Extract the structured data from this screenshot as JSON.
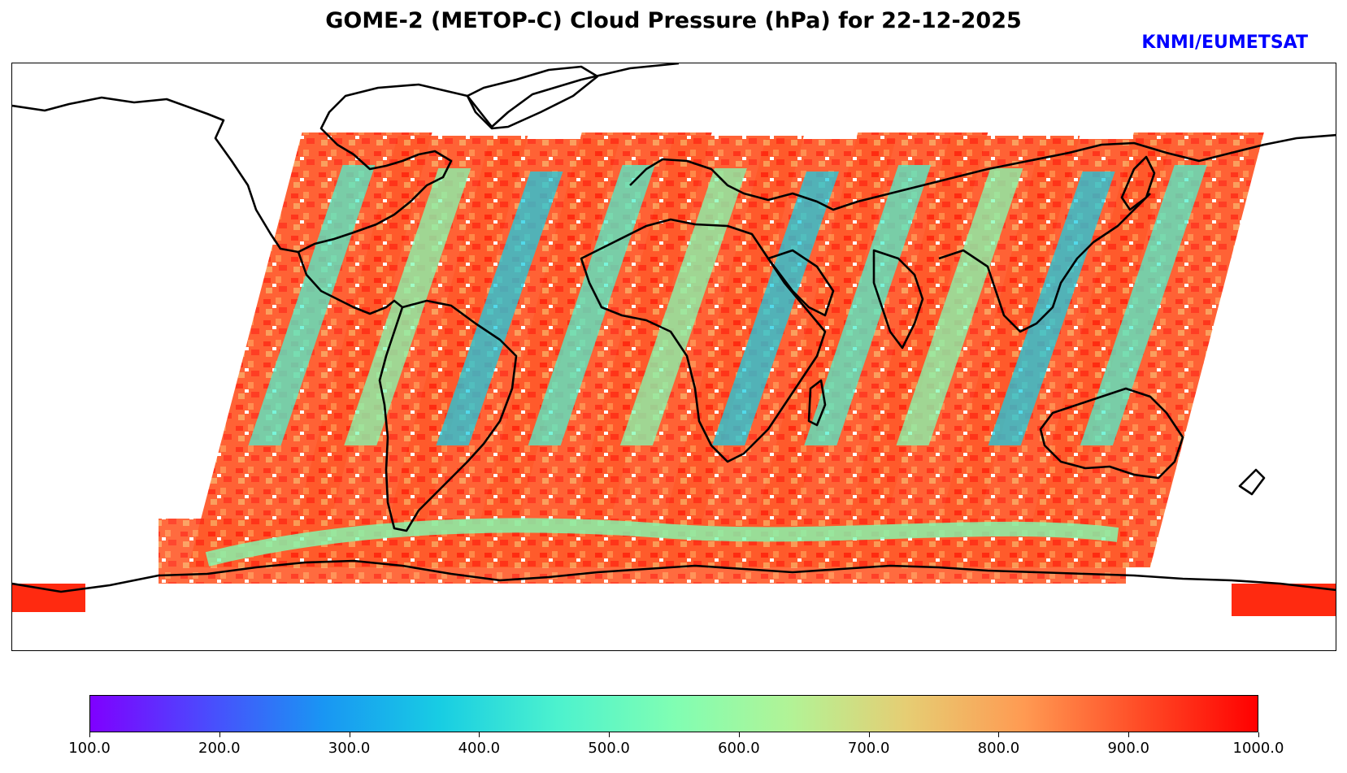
{
  "title": "GOME-2 (METOP-C) Cloud Pressure (hPa) for 22-12-2025",
  "credit": "KNMI/EUMETSAT",
  "colorbar": {
    "label_values": [
      "100.0",
      "200.0",
      "300.0",
      "400.0",
      "500.0",
      "600.0",
      "700.0",
      "800.0",
      "900.0",
      "1000.0"
    ],
    "min": 100,
    "max": 1000,
    "colormap": "rainbow",
    "stops": [
      "#7f00ff",
      "#4b4bfd",
      "#1996f3",
      "#18cde3",
      "#4cf2ce",
      "#80feb3",
      "#b2f396",
      "#e6cd73",
      "#ff9a52",
      "#ff4b26",
      "#ff0000"
    ]
  },
  "map": {
    "projection": "equirectangular",
    "swaths": [
      {
        "name": "swath-1",
        "lon_center": -88
      },
      {
        "name": "swath-2",
        "lon_center": -62
      },
      {
        "name": "swath-3",
        "lon_center": -37
      },
      {
        "name": "swath-4",
        "lon_center": -12
      },
      {
        "name": "swath-5",
        "lon_center": 13
      },
      {
        "name": "swath-6",
        "lon_center": 38
      },
      {
        "name": "swath-7",
        "lon_center": 63
      },
      {
        "name": "swath-8",
        "lon_center": 88
      },
      {
        "name": "swath-9",
        "lon_center": 113
      },
      {
        "name": "swath-10",
        "lon_center": 138
      }
    ]
  }
}
